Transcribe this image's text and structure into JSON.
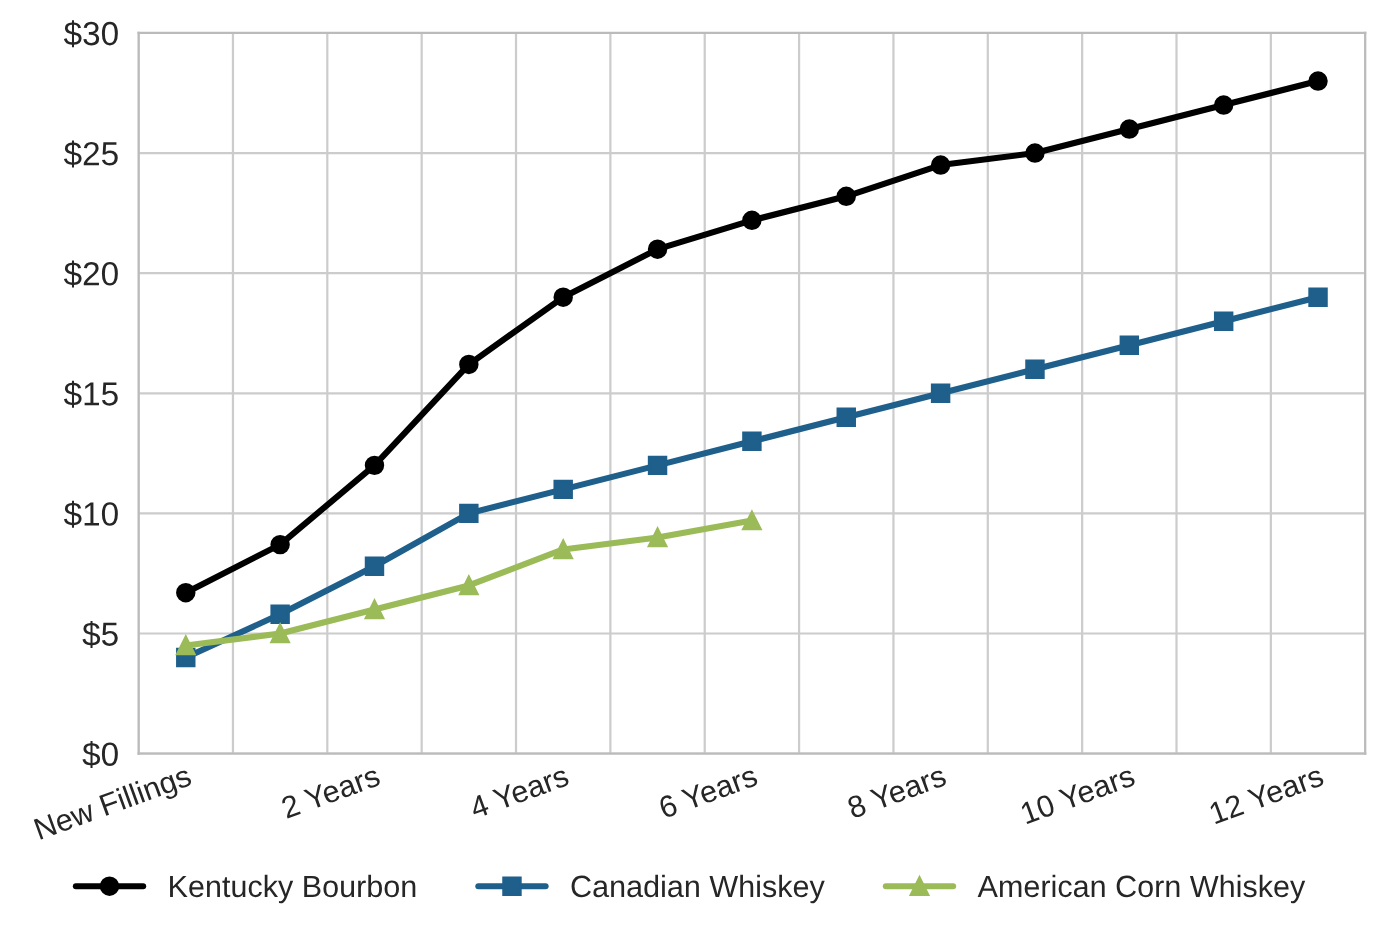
{
  "chart_data": {
    "type": "line",
    "categories": [
      "New Fillings",
      null,
      "2 Years",
      null,
      "4 Years",
      null,
      "6 Years",
      null,
      "8 Years",
      null,
      "10 Years",
      null,
      "12 Years"
    ],
    "series": [
      {
        "name": "Kentucky Bourbon",
        "color": "#000000",
        "marker": "circle",
        "values": [
          6.7,
          8.7,
          12,
          16.2,
          19,
          21,
          22.2,
          23.2,
          24.5,
          25,
          26,
          27,
          28
        ]
      },
      {
        "name": "Canadian Whiskey",
        "color": "#1f5f8b",
        "marker": "square",
        "values": [
          4,
          5.8,
          7.8,
          10,
          11,
          12,
          13,
          14,
          15,
          16,
          17,
          18,
          19
        ]
      },
      {
        "name": "American Corn Whiskey",
        "color": "#9bbb59",
        "marker": "triangle",
        "values": [
          4.5,
          5,
          6,
          7,
          8.5,
          9,
          9.7,
          null,
          null,
          null,
          null,
          null,
          null
        ]
      }
    ],
    "ylim": [
      0,
      30
    ],
    "yticks": [
      {
        "value": 0,
        "label": "$0"
      },
      {
        "value": 5,
        "label": "$5"
      },
      {
        "value": 10,
        "label": "$10"
      },
      {
        "value": 15,
        "label": "$15"
      },
      {
        "value": 20,
        "label": "$20"
      },
      {
        "value": 25,
        "label": "$25"
      },
      {
        "value": 30,
        "label": "$30"
      }
    ],
    "grid": true,
    "legend": "bottom"
  }
}
